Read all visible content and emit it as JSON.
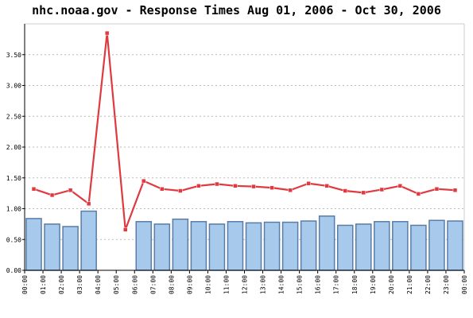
{
  "chart_data": {
    "type": "bar",
    "title": "nhc.noaa.gov - Response Times Aug 01, 2006 - Oct 30, 2006",
    "xlabel": "",
    "ylabel": "",
    "ylim": [
      0,
      4.0
    ],
    "y_ticks": [
      "0.00",
      "0.50",
      "1.00",
      "1.50",
      "2.00",
      "2.50",
      "3.00",
      "3.50"
    ],
    "x_ticks": [
      "00:00",
      "01:00",
      "02:00",
      "03:00",
      "04:00",
      "05:00",
      "06:00",
      "07:00",
      "08:00",
      "09:00",
      "10:00",
      "11:00",
      "12:00",
      "13:00",
      "14:00",
      "15:00",
      "16:00",
      "17:00",
      "18:00",
      "19:00",
      "20:00",
      "21:00",
      "22:00",
      "23:00",
      "00:00"
    ],
    "grid": true,
    "colors": {
      "bar_fill": "#a6c9ec",
      "bar_stroke": "#5a7da8",
      "line": "#e0393f",
      "grid": "#bbbbbb",
      "axis": "#000000"
    },
    "series": [
      {
        "type": "bar",
        "values": [
          0.84,
          0.75,
          0.71,
          0.96,
          0.0,
          0.0,
          0.79,
          0.75,
          0.83,
          0.79,
          0.75,
          0.79,
          0.77,
          0.78,
          0.78,
          0.8,
          0.88,
          0.73,
          0.75,
          0.79,
          0.79,
          0.73,
          0.81,
          0.8
        ]
      },
      {
        "type": "line",
        "values": [
          1.32,
          1.22,
          1.3,
          1.08,
          3.85,
          0.66,
          1.45,
          1.32,
          1.29,
          1.37,
          1.4,
          1.37,
          1.36,
          1.34,
          1.3,
          1.41,
          1.37,
          1.29,
          1.26,
          1.31,
          1.37,
          1.24,
          1.32,
          1.3
        ]
      }
    ]
  }
}
